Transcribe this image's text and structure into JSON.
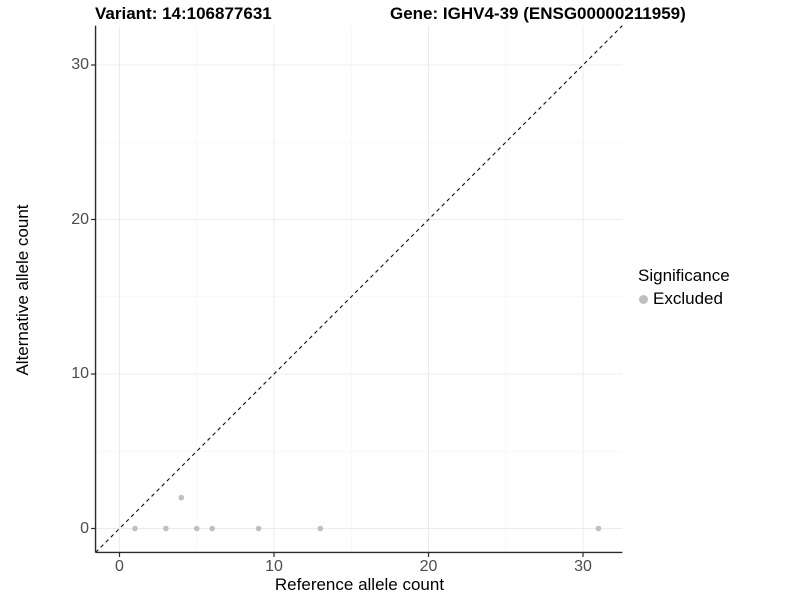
{
  "titles": {
    "variant": "Variant: 14:106877631",
    "gene": "Gene: IGHV4-39 (ENSG00000211959)"
  },
  "chart_data": {
    "type": "scatter",
    "title": "Variant: 14:106877631 | Gene: IGHV4-39 (ENSG00000211959)",
    "xlabel": "Reference allele count",
    "ylabel": "Alternative allele count",
    "xlim": [
      -1.55,
      32.55
    ],
    "ylim": [
      -1.55,
      32.55
    ],
    "x_ticks": [
      0,
      10,
      20,
      30
    ],
    "y_ticks": [
      0,
      10,
      20,
      30
    ],
    "x_minor_ticks": [
      5,
      15,
      25
    ],
    "y_minor_ticks": [
      5,
      15,
      25
    ],
    "grid": {
      "major_color": "#ececec",
      "minor_color": "#f5f5f5",
      "background": "#ffffff"
    },
    "axis_color": "#2b2b2b",
    "tick_label_color": "#4d4d4d",
    "identity_line": {
      "type": "dashed",
      "color": "#111111",
      "from": -1.55,
      "to": 32.55
    },
    "series": [
      {
        "name": "Excluded",
        "color": "#bfbfbf",
        "points": [
          [
            1,
            0
          ],
          [
            3,
            0
          ],
          [
            4,
            2
          ],
          [
            5,
            0
          ],
          [
            6,
            0
          ],
          [
            9,
            0
          ],
          [
            13,
            0
          ],
          [
            31,
            0
          ]
        ]
      }
    ],
    "legend": {
      "title": "Significance",
      "position": "right",
      "entries": [
        {
          "label": "Excluded",
          "color": "#bfbfbf"
        }
      ]
    }
  }
}
